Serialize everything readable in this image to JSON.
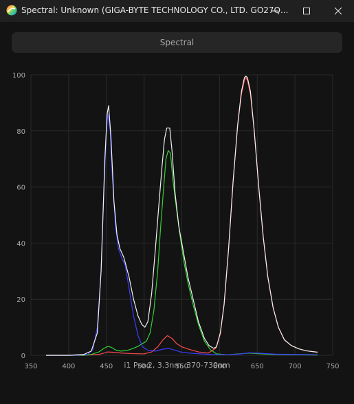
{
  "window": {
    "title": "Spectral: Unknown (GIGA-BYTE TECHNOLOGY CO., LTD. GO27Q..."
  },
  "tab": {
    "label": "Spectral"
  },
  "caption": "i1 Pro 2, 3.3nm, 370-730nm",
  "colors": {
    "background": "#131313",
    "white": "#f2f2f2",
    "red": "#ff4b4b",
    "green": "#35d035",
    "blue": "#3c3cff",
    "gridline": "#2a2a2a"
  },
  "chart_data": {
    "type": "line",
    "xlim": [
      350,
      750
    ],
    "ylim": [
      0,
      100
    ],
    "xticks": [
      350,
      400,
      450,
      500,
      550,
      600,
      650,
      700,
      750
    ],
    "yticks": [
      0,
      20,
      40,
      60,
      80,
      100
    ],
    "grid": true,
    "series": [
      {
        "color": "#f2f2f2",
        "points": [
          [
            370,
            0
          ],
          [
            400,
            0
          ],
          [
            420,
            0.3
          ],
          [
            430,
            1.5
          ],
          [
            438,
            8
          ],
          [
            443,
            30
          ],
          [
            448,
            70
          ],
          [
            451,
            86
          ],
          [
            453,
            89
          ],
          [
            456,
            78
          ],
          [
            460,
            55
          ],
          [
            464,
            43
          ],
          [
            468,
            38
          ],
          [
            473,
            35
          ],
          [
            480,
            28
          ],
          [
            486,
            20
          ],
          [
            492,
            14
          ],
          [
            497,
            11
          ],
          [
            501,
            10
          ],
          [
            505,
            12
          ],
          [
            510,
            22
          ],
          [
            515,
            38
          ],
          [
            520,
            55
          ],
          [
            524,
            68
          ],
          [
            527,
            77
          ],
          [
            530,
            81
          ],
          [
            534,
            81
          ],
          [
            537,
            73
          ],
          [
            541,
            58
          ],
          [
            546,
            46
          ],
          [
            552,
            37
          ],
          [
            558,
            28
          ],
          [
            565,
            20
          ],
          [
            572,
            12
          ],
          [
            580,
            6
          ],
          [
            586,
            3.5
          ],
          [
            592,
            2.5
          ],
          [
            596,
            3
          ],
          [
            601,
            8
          ],
          [
            606,
            18
          ],
          [
            612,
            38
          ],
          [
            618,
            62
          ],
          [
            624,
            82
          ],
          [
            629,
            94
          ],
          [
            633,
            99
          ],
          [
            635,
            99.5
          ],
          [
            637,
            99
          ],
          [
            641,
            94
          ],
          [
            646,
            80
          ],
          [
            652,
            60
          ],
          [
            658,
            42
          ],
          [
            664,
            28
          ],
          [
            671,
            17
          ],
          [
            678,
            10
          ],
          [
            686,
            5.5
          ],
          [
            695,
            3.5
          ],
          [
            705,
            2.3
          ],
          [
            715,
            1.6
          ],
          [
            730,
            1.1
          ]
        ]
      },
      {
        "color": "#ff4b4b",
        "points": [
          [
            370,
            0
          ],
          [
            420,
            0
          ],
          [
            440,
            0.3
          ],
          [
            447,
            0.8
          ],
          [
            452,
            1.2
          ],
          [
            458,
            1.1
          ],
          [
            470,
            0.8
          ],
          [
            485,
            0.6
          ],
          [
            500,
            0.5
          ],
          [
            510,
            1.2
          ],
          [
            518,
            3
          ],
          [
            525,
            5.5
          ],
          [
            531,
            7
          ],
          [
            537,
            6
          ],
          [
            543,
            4.2
          ],
          [
            550,
            3
          ],
          [
            560,
            2.1
          ],
          [
            572,
            1.2
          ],
          [
            585,
            0.8
          ],
          [
            595,
            2.5
          ],
          [
            601,
            7.5
          ],
          [
            606,
            18
          ],
          [
            612,
            38
          ],
          [
            618,
            62
          ],
          [
            624,
            82
          ],
          [
            629,
            93
          ],
          [
            633,
            98
          ],
          [
            635,
            99
          ],
          [
            637,
            98
          ],
          [
            641,
            93
          ],
          [
            646,
            80
          ],
          [
            652,
            60
          ],
          [
            658,
            42
          ],
          [
            664,
            28
          ],
          [
            671,
            17
          ],
          [
            678,
            10
          ],
          [
            686,
            5.5
          ],
          [
            695,
            3.5
          ],
          [
            705,
            2.3
          ],
          [
            715,
            1.6
          ],
          [
            730,
            1.1
          ]
        ]
      },
      {
        "color": "#35d035",
        "points": [
          [
            370,
            0
          ],
          [
            420,
            0
          ],
          [
            430,
            0.3
          ],
          [
            440,
            1.2
          ],
          [
            447,
            2.5
          ],
          [
            452,
            3.2
          ],
          [
            457,
            2.8
          ],
          [
            463,
            1.8
          ],
          [
            470,
            1.5
          ],
          [
            478,
            1.8
          ],
          [
            485,
            2.4
          ],
          [
            492,
            3.2
          ],
          [
            498,
            4.2
          ],
          [
            503,
            5
          ],
          [
            508,
            8
          ],
          [
            513,
            16
          ],
          [
            518,
            30
          ],
          [
            522,
            46
          ],
          [
            526,
            60
          ],
          [
            529,
            70
          ],
          [
            532,
            73
          ],
          [
            535,
            72
          ],
          [
            538,
            63
          ],
          [
            543,
            52
          ],
          [
            548,
            42
          ],
          [
            553,
            33
          ],
          [
            558,
            26
          ],
          [
            565,
            18
          ],
          [
            572,
            11
          ],
          [
            580,
            5
          ],
          [
            588,
            2
          ],
          [
            596,
            0.5
          ],
          [
            610,
            0.2
          ],
          [
            630,
            0.6
          ],
          [
            640,
            0.8
          ],
          [
            650,
            0.6
          ],
          [
            670,
            0.3
          ],
          [
            730,
            0.1
          ]
        ]
      },
      {
        "color": "#3c3cff",
        "points": [
          [
            370,
            0
          ],
          [
            410,
            0
          ],
          [
            425,
            0.3
          ],
          [
            432,
            2
          ],
          [
            438,
            10
          ],
          [
            443,
            30
          ],
          [
            447,
            60
          ],
          [
            450,
            80
          ],
          [
            452,
            86
          ],
          [
            455,
            80
          ],
          [
            458,
            63
          ],
          [
            462,
            46
          ],
          [
            466,
            38
          ],
          [
            470,
            35
          ],
          [
            475,
            32
          ],
          [
            480,
            24
          ],
          [
            486,
            14
          ],
          [
            492,
            7
          ],
          [
            498,
            3
          ],
          [
            505,
            1.8
          ],
          [
            515,
            1.5
          ],
          [
            525,
            2.2
          ],
          [
            533,
            2.4
          ],
          [
            540,
            1.9
          ],
          [
            548,
            1.2
          ],
          [
            560,
            0.8
          ],
          [
            575,
            0.5
          ],
          [
            590,
            0.3
          ],
          [
            610,
            0.2
          ],
          [
            625,
            0.4
          ],
          [
            640,
            0.9
          ],
          [
            655,
            0.7
          ],
          [
            675,
            0.4
          ],
          [
            700,
            0.3
          ],
          [
            730,
            0.2
          ]
        ]
      }
    ]
  }
}
